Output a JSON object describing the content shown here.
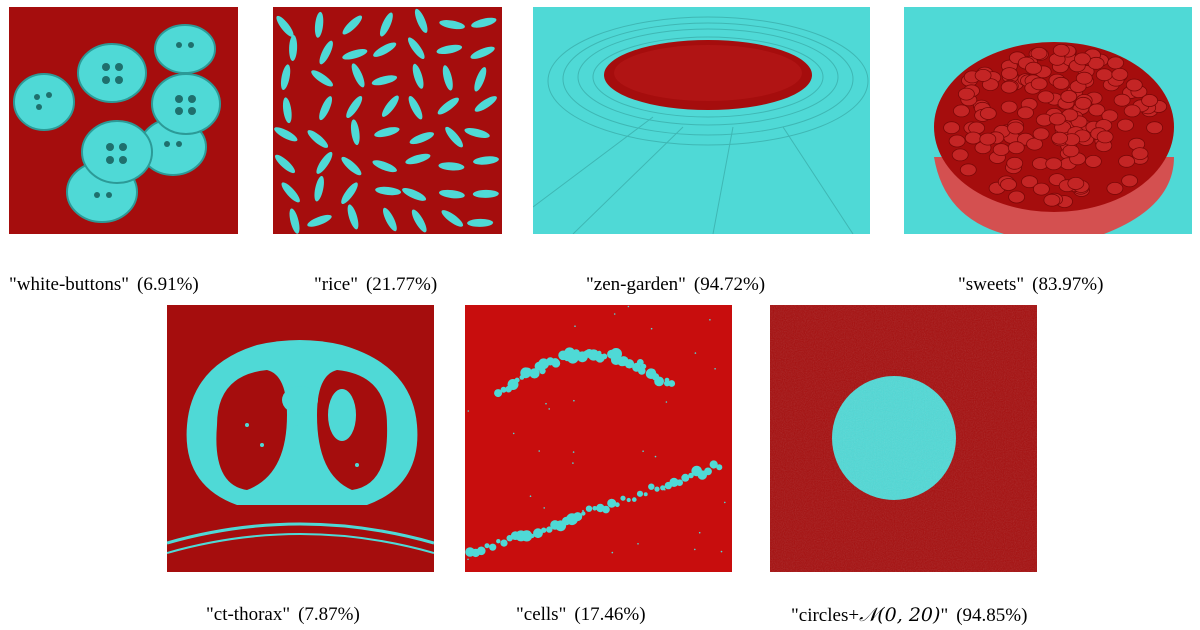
{
  "colors": {
    "foreground": "#4fd9d6",
    "background": "#a50d0d",
    "cells_bg": "#c80d0d"
  },
  "images": [
    {
      "name": "white-buttons",
      "caption": "\"white-buttons\"",
      "percent": "(6.91%)"
    },
    {
      "name": "rice",
      "caption": "\"rice\"",
      "percent": "(21.77%)"
    },
    {
      "name": "zen-garden",
      "caption": "\"zen-garden\"",
      "percent": "(94.72%)"
    },
    {
      "name": "sweets",
      "caption": "\"sweets\"",
      "percent": "(83.97%)"
    },
    {
      "name": "ct-thorax",
      "caption": "\"ct-thorax\"",
      "percent": "(7.87%)"
    },
    {
      "name": "cells",
      "caption": "\"cells\"",
      "percent": "(17.46%)"
    },
    {
      "name": "circles-noise",
      "caption_prefix": "\"circles+",
      "caption_math": "𝒩(0, 20)",
      "caption_suffix": "\"",
      "percent": "(94.85%)"
    }
  ]
}
